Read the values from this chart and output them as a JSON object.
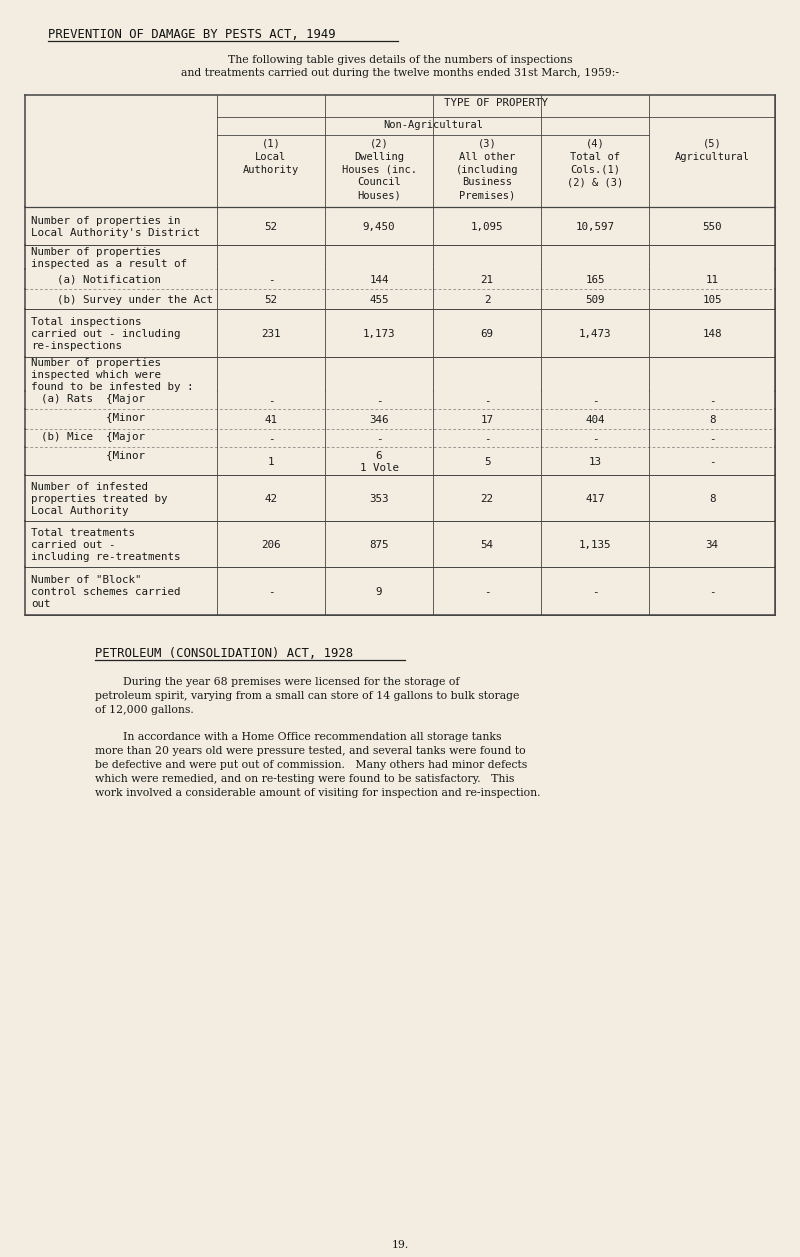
{
  "bg_color": "#f2ede0",
  "title": "PREVENTION OF DAMAGE BY PESTS ACT, 1949",
  "intro_line1": "The following table gives details of the numbers of inspections",
  "intro_line2": "and treatments carried out during the twelve months ended 31st March, 1959:-",
  "col_headers": [
    "(1)\nLocal\nAuthority",
    "(2)\nDwelling\nHouses (inc.\nCouncil\nHouses)",
    "(3)\nAll other\n(including\nBusiness\nPremises)",
    "(4)\nTotal of\nCols.(1)\n(2) & (3)",
    "(5)\nAgricultural"
  ],
  "petroleum_title": "PETROLEUM (CONSOLIDATION) ACT, 1928",
  "petroleum_para1": "        During the year 68 premises were licensed for the storage of\npetroleum spirit, varying from a small can store of 14 gallons to bulk storage\nof 12,000 gallons.",
  "petroleum_para2": "        In accordance with a Home Office recommendation all storage tanks\nmore than 20 years old were pressure tested, and several tanks were found to\nbe defective and were put out of commission.   Many others had minor defects\nwhich were remedied, and on re-testing were found to be satisfactory.   This\nwork involved a considerable amount of visiting for inspection and re-inspection.",
  "page_number": "19.",
  "font_size": 7.8,
  "title_font_size": 8.8,
  "header_font_size": 7.5,
  "table_font_size": 7.8
}
